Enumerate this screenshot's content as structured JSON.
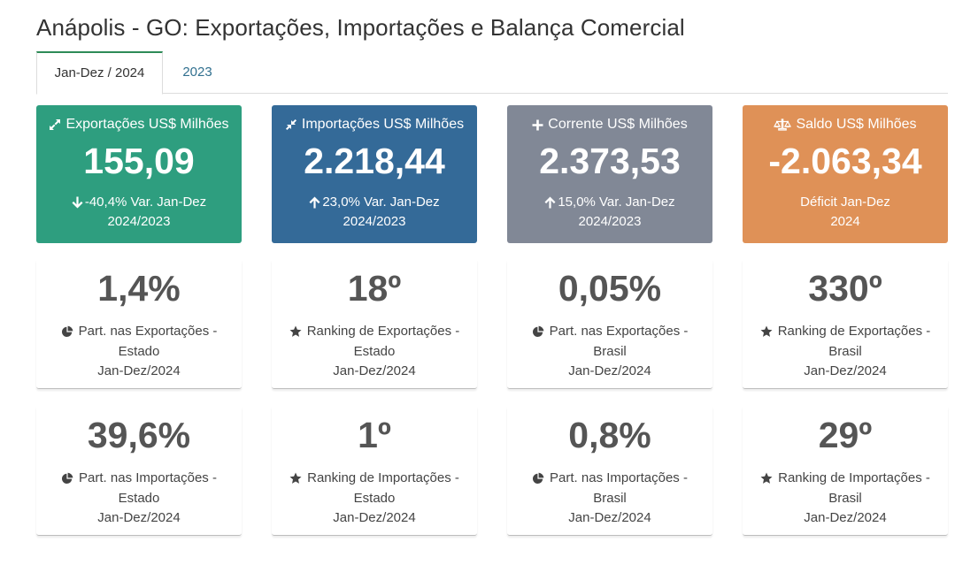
{
  "title": "Anápolis - GO: Exportações, Importações e Balança Comercial",
  "tabs": [
    {
      "label": "Jan-Dez / 2024",
      "active": true
    },
    {
      "label": "2023",
      "active": false
    }
  ],
  "cards": [
    {
      "label": "Exportações US$ Milhões",
      "icon": "expand-arrows-icon",
      "value": "155,09",
      "var": "-40,4% Var. Jan-Dez",
      "var_icon": "arrow-down-icon",
      "period": "2024/2023",
      "color": "#2e9e7f"
    },
    {
      "label": "Importações US$ Milhões",
      "icon": "compress-arrows-icon",
      "value": "2.218,44",
      "var": "23,0% Var. Jan-Dez",
      "var_icon": "arrow-up-icon",
      "period": "2024/2023",
      "color": "#346a98"
    },
    {
      "label": "Corrente US$ Milhões",
      "icon": "plus-icon",
      "value": "2.373,53",
      "var": "15,0% Var. Jan-Dez",
      "var_icon": "arrow-up-icon",
      "period": "2024/2023",
      "color": "#818896"
    },
    {
      "label": "Saldo US$ Milhões",
      "icon": "balance-scale-icon",
      "value": "-2.063,34",
      "var": "Déficit Jan-Dez",
      "var_icon": "",
      "period": "2024",
      "color": "#df9157"
    }
  ],
  "stats_row1": [
    {
      "value": "1,4%",
      "icon": "pie-chart-icon",
      "line1": "Part. nas Exportações -",
      "line2": "Estado",
      "line3": "Jan-Dez/2024"
    },
    {
      "value": "18º",
      "icon": "star-icon",
      "line1": "Ranking de Exportações -",
      "line2": "Estado",
      "line3": "Jan-Dez/2024"
    },
    {
      "value": "0,05%",
      "icon": "pie-chart-icon",
      "line1": "Part. nas Exportações -",
      "line2": "Brasil",
      "line3": "Jan-Dez/2024"
    },
    {
      "value": "330º",
      "icon": "star-icon",
      "line1": "Ranking de Exportações -",
      "line2": "Brasil",
      "line3": "Jan-Dez/2024"
    }
  ],
  "stats_row2": [
    {
      "value": "39,6%",
      "icon": "pie-chart-icon",
      "line1": "Part. nas Importações -",
      "line2": "Estado",
      "line3": "Jan-Dez/2024"
    },
    {
      "value": "1º",
      "icon": "star-icon",
      "line1": "Ranking de Importações -",
      "line2": "Estado",
      "line3": "Jan-Dez/2024"
    },
    {
      "value": "0,8%",
      "icon": "pie-chart-icon",
      "line1": "Part. nas Importações -",
      "line2": "Brasil",
      "line3": "Jan-Dez/2024"
    },
    {
      "value": "29º",
      "icon": "star-icon",
      "line1": "Ranking de Importações -",
      "line2": "Brasil",
      "line3": "Jan-Dez/2024"
    }
  ]
}
